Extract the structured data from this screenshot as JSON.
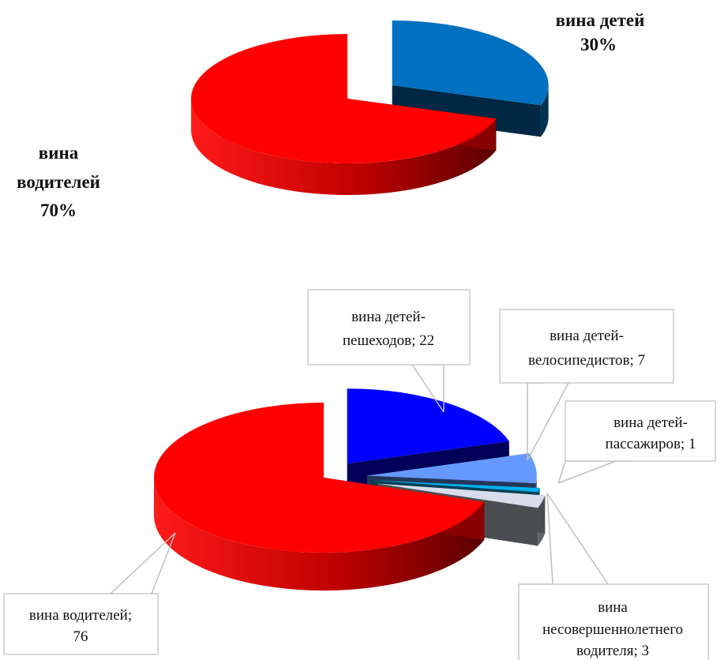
{
  "chart_data": [
    {
      "type": "pie",
      "title": "",
      "slices": [
        {
          "name": "вина детей",
          "value": 30,
          "label_name": "вина детей",
          "label_value": "30%",
          "color": "#0070C0"
        },
        {
          "name": "вина водителей",
          "value": 70,
          "label_name_line1": "вина",
          "label_name_line2": "водителей",
          "label_value": "70%",
          "color": "#FF0000"
        }
      ]
    },
    {
      "type": "pie",
      "title": "",
      "slices": [
        {
          "name": "вина детей-пешеходов",
          "value": 22,
          "label_line1": "вина детей-",
          "label_line2": "пешеходов; 22",
          "color": "#0000FF"
        },
        {
          "name": "вина детей-велосипедистов",
          "value": 7,
          "label_line1": "вина детей-",
          "label_line2": "велосипедистов; 7",
          "color": "#6699FF"
        },
        {
          "name": "вина детей-пассажиров",
          "value": 1,
          "label_line1": "вина детей-",
          "label_line2": "пассажиров; 1",
          "color": "#00B0F0"
        },
        {
          "name": "вина несовершеннолетнего водителя",
          "value": 3,
          "label_line1": "вина",
          "label_line2": "несовершеннолетнего",
          "label_line3": "водителя; 3",
          "color": "#D9DCEA"
        },
        {
          "name": "вина водителей",
          "value": 76,
          "label_line1": "вина водителей;",
          "label_line2": "76",
          "color": "#FF0000"
        }
      ]
    }
  ]
}
